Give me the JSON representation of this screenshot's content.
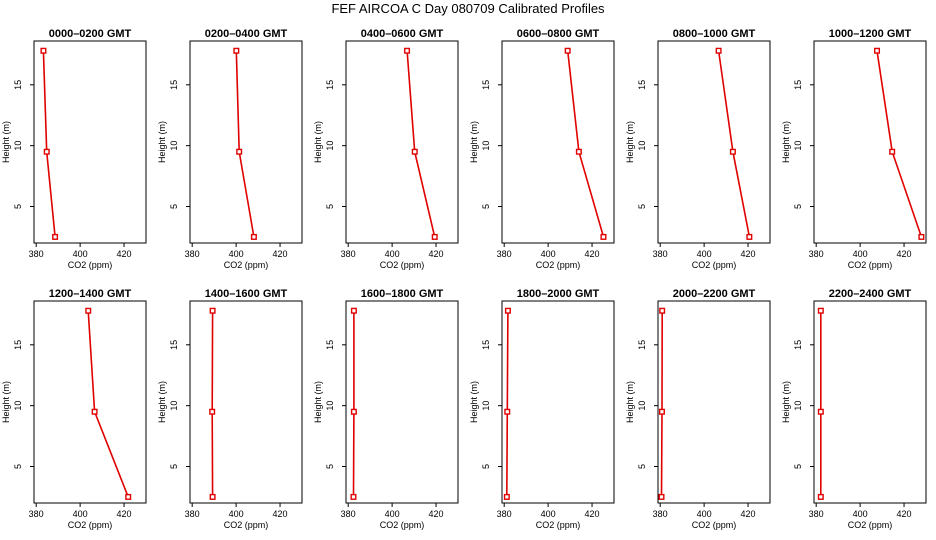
{
  "page": {
    "title": "FEF  AIRCOA C  Day 080709  Calibrated Profiles"
  },
  "chart_data": [
    {
      "type": "line",
      "title": "0000–0200 GMT",
      "xlabel": "CO2 (ppm)",
      "ylabel": "Height (m)",
      "xlim": [
        379,
        430
      ],
      "ylim": [
        2,
        18.6
      ],
      "xticks": [
        380,
        400,
        420
      ],
      "yticks": [
        5,
        10,
        15
      ],
      "x": [
        383.3,
        384.8,
        388.6
      ],
      "y": [
        17.8,
        9.5,
        2.5
      ],
      "color": "#e00000"
    },
    {
      "type": "line",
      "title": "0200–0400 GMT",
      "xlabel": "CO2 (ppm)",
      "ylabel": "Height (m)",
      "xlim": [
        379,
        430
      ],
      "ylim": [
        2,
        18.6
      ],
      "xticks": [
        380,
        400,
        420
      ],
      "yticks": [
        5,
        10,
        15
      ],
      "x": [
        400.1,
        401.4,
        408.1
      ],
      "y": [
        17.8,
        9.5,
        2.5
      ],
      "color": "#e00000"
    },
    {
      "type": "line",
      "title": "0400–0600 GMT",
      "xlabel": "CO2 (ppm)",
      "ylabel": "Height (m)",
      "xlim": [
        379,
        430
      ],
      "ylim": [
        2,
        18.6
      ],
      "xticks": [
        380,
        400,
        420
      ],
      "yticks": [
        5,
        10,
        15
      ],
      "x": [
        406.8,
        410.3,
        419.4
      ],
      "y": [
        17.8,
        9.5,
        2.5
      ],
      "color": "#e00000"
    },
    {
      "type": "line",
      "title": "0600–0800 GMT",
      "xlabel": "CO2 (ppm)",
      "ylabel": "Height (m)",
      "xlim": [
        379,
        430
      ],
      "ylim": [
        2,
        18.6
      ],
      "xticks": [
        380,
        400,
        420
      ],
      "yticks": [
        5,
        10,
        15
      ],
      "x": [
        408.9,
        414.0,
        425.2
      ],
      "y": [
        17.8,
        9.5,
        2.5
      ],
      "color": "#e00000"
    },
    {
      "type": "line",
      "title": "0800–1000 GMT",
      "xlabel": "CO2 (ppm)",
      "ylabel": "Height (m)",
      "xlim": [
        379,
        430
      ],
      "ylim": [
        2,
        18.6
      ],
      "xticks": [
        380,
        400,
        420
      ],
      "yticks": [
        5,
        10,
        15
      ],
      "x": [
        406.6,
        413.1,
        420.6
      ],
      "y": [
        17.8,
        9.5,
        2.5
      ],
      "color": "#e00000"
    },
    {
      "type": "line",
      "title": "1000–1200 GMT",
      "xlabel": "CO2 (ppm)",
      "ylabel": "Height (m)",
      "xlim": [
        379,
        430
      ],
      "ylim": [
        2,
        18.6
      ],
      "xticks": [
        380,
        400,
        420
      ],
      "yticks": [
        5,
        10,
        15
      ],
      "x": [
        407.7,
        414.6,
        427.9
      ],
      "y": [
        17.8,
        9.5,
        2.5
      ],
      "color": "#e00000"
    },
    {
      "type": "line",
      "title": "1200–1400 GMT",
      "xlabel": "CO2 (ppm)",
      "ylabel": "Height (m)",
      "xlim": [
        379,
        430
      ],
      "ylim": [
        2,
        18.6
      ],
      "xticks": [
        380,
        400,
        420
      ],
      "yticks": [
        5,
        10,
        15
      ],
      "x": [
        403.7,
        406.6,
        421.9
      ],
      "y": [
        17.8,
        9.5,
        2.5
      ],
      "color": "#e00000"
    },
    {
      "type": "line",
      "title": "1400–1600 GMT",
      "xlabel": "CO2 (ppm)",
      "ylabel": "Height (m)",
      "xlim": [
        379,
        430
      ],
      "ylim": [
        2,
        18.6
      ],
      "xticks": [
        380,
        400,
        420
      ],
      "yticks": [
        5,
        10,
        15
      ],
      "x": [
        389.3,
        389.1,
        389.3
      ],
      "y": [
        17.8,
        9.5,
        2.5
      ],
      "color": "#e00000"
    },
    {
      "type": "line",
      "title": "1600–1800 GMT",
      "xlabel": "CO2 (ppm)",
      "ylabel": "Height (m)",
      "xlim": [
        379,
        430
      ],
      "ylim": [
        2,
        18.6
      ],
      "xticks": [
        380,
        400,
        420
      ],
      "yticks": [
        5,
        10,
        15
      ],
      "x": [
        382.6,
        382.6,
        382.4
      ],
      "y": [
        17.8,
        9.5,
        2.5
      ],
      "color": "#e00000"
    },
    {
      "type": "line",
      "title": "1800–2000 GMT",
      "xlabel": "CO2 (ppm)",
      "ylabel": "Height (m)",
      "xlim": [
        379,
        430
      ],
      "ylim": [
        2,
        18.6
      ],
      "xticks": [
        380,
        400,
        420
      ],
      "yticks": [
        5,
        10,
        15
      ],
      "x": [
        381.7,
        381.4,
        381.2
      ],
      "y": [
        17.8,
        9.5,
        2.5
      ],
      "color": "#e00000"
    },
    {
      "type": "line",
      "title": "2000–2200 GMT",
      "xlabel": "CO2 (ppm)",
      "ylabel": "Height (m)",
      "xlim": [
        379,
        430
      ],
      "ylim": [
        2,
        18.6
      ],
      "xticks": [
        380,
        400,
        420
      ],
      "yticks": [
        5,
        10,
        15
      ],
      "x": [
        380.9,
        380.8,
        380.6
      ],
      "y": [
        17.8,
        9.5,
        2.5
      ],
      "color": "#e00000"
    },
    {
      "type": "line",
      "title": "2200–2400 GMT",
      "xlabel": "CO2 (ppm)",
      "ylabel": "Height (m)",
      "xlim": [
        379,
        430
      ],
      "ylim": [
        2,
        18.6
      ],
      "xticks": [
        380,
        400,
        420
      ],
      "yticks": [
        5,
        10,
        15
      ],
      "x": [
        382.1,
        382.1,
        382.1
      ],
      "y": [
        17.8,
        9.5,
        2.5
      ],
      "color": "#e00000"
    }
  ]
}
